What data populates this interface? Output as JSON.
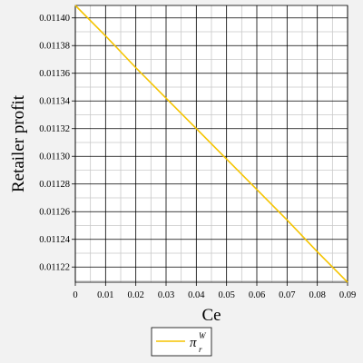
{
  "chart_data": {
    "type": "line",
    "xlabel": "Ce",
    "ylabel": "Retailer profit",
    "xlim": [
      0,
      0.09
    ],
    "ylim": [
      0.011209,
      0.011409
    ],
    "x_ticks": [
      "0",
      "0.01",
      "0.02",
      "0.03",
      "0.04",
      "0.05",
      "0.06",
      "0.07",
      "0.08",
      "0.09"
    ],
    "y_ticks": [
      "0.01122",
      "0.01124",
      "0.01126",
      "0.01128",
      "0.01130",
      "0.01132",
      "0.01134",
      "0.01136",
      "0.01138",
      "0.01140"
    ],
    "grid": true,
    "legend_position": "bottom-center",
    "series": [
      {
        "name": "π_r^W",
        "color": "#f5c400",
        "x": [
          0,
          0.01,
          0.02,
          0.03,
          0.04,
          0.05,
          0.06,
          0.07,
          0.08,
          0.09
        ],
        "y": [
          0.011409,
          0.011387,
          0.011364,
          0.011342,
          0.01132,
          0.011298,
          0.011276,
          0.011254,
          0.011231,
          0.011209
        ]
      }
    ],
    "legend": {
      "symbol": "π",
      "superscript": "W",
      "subscript": "r"
    }
  }
}
